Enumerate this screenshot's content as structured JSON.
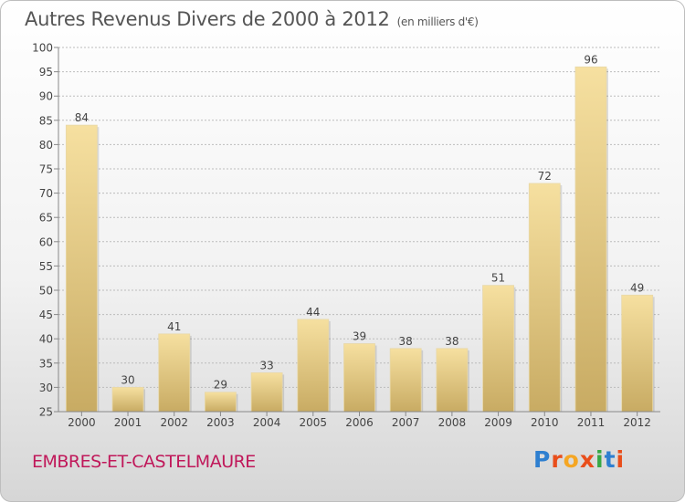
{
  "header": {
    "title": "Autres Revenus Divers de 2000 à 2012",
    "unit": "(en milliers d'€)"
  },
  "footer": {
    "commune": "EMBRES-ET-CASTELMAURE",
    "logo_letters": [
      "P",
      "r",
      "o",
      "x",
      "i",
      "t",
      "i"
    ],
    "logo_colors": [
      "#2e7fd0",
      "#e94e1b",
      "#f5a623",
      "#e94e1b",
      "#37a845",
      "#2e7fd0",
      "#e94e1b"
    ]
  },
  "colors": {
    "bar_light": "#f6e0a0",
    "bar_dark": "#c8ab63",
    "grid": "#bcbcbc",
    "axis_text": "#444444"
  },
  "chart_data": {
    "type": "bar",
    "categories": [
      "2000",
      "2001",
      "2002",
      "2003",
      "2004",
      "2005",
      "2006",
      "2007",
      "2008",
      "2009",
      "2010",
      "2011",
      "2012"
    ],
    "values": [
      84,
      30,
      41,
      29,
      33,
      44,
      39,
      38,
      38,
      51,
      72,
      96,
      49
    ],
    "ylim": [
      25,
      100
    ],
    "yticks": [
      25,
      30,
      35,
      40,
      45,
      50,
      55,
      60,
      65,
      70,
      75,
      80,
      85,
      90,
      95,
      100
    ],
    "grid": true,
    "legend": "none"
  }
}
